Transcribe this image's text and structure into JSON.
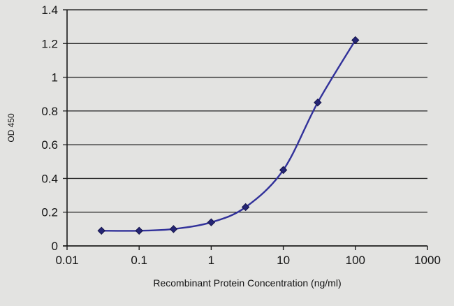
{
  "chart_data": {
    "type": "line",
    "title": "",
    "xlabel": "Recombinant Protein Concentration (ng/ml)",
    "ylabel": "OD 450",
    "x_scale": "log",
    "xlim": [
      0.01,
      1000
    ],
    "ylim": [
      0,
      1.4
    ],
    "x_ticks": [
      0.01,
      0.1,
      1,
      10,
      100,
      1000
    ],
    "x_tick_labels": [
      "0.01",
      "0.1",
      "1",
      "10",
      "100",
      "1000"
    ],
    "y_ticks": [
      0,
      0.2,
      0.4,
      0.6,
      0.8,
      1,
      1.2,
      1.4
    ],
    "y_tick_labels": [
      "0",
      "0.2",
      "0.4",
      "0.6",
      "0.8",
      "1",
      "1.2",
      "1.4"
    ],
    "grid": "horizontal",
    "legend": "none",
    "series": [
      {
        "name": "OD 450",
        "marker": "diamond",
        "line_style": "smooth",
        "x": [
          0.03,
          0.1,
          0.3,
          1,
          3,
          10,
          30,
          100
        ],
        "y": [
          0.09,
          0.09,
          0.1,
          0.14,
          0.23,
          0.45,
          0.85,
          1.22
        ]
      }
    ]
  },
  "colors": {
    "background": "#e3e3e1",
    "grid": "#2f2f2f",
    "axis": "#1a1a1a",
    "text": "#141414",
    "series_line": "#31319a",
    "marker_fill": "#252575",
    "marker_edge": "#15154a"
  }
}
